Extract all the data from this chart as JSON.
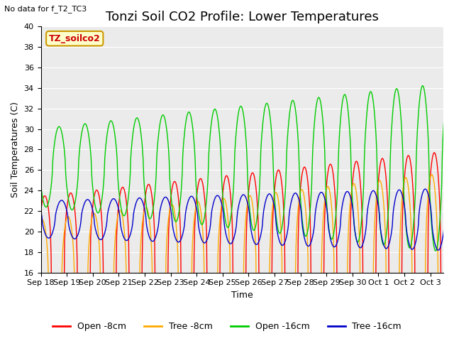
{
  "title": "Tonzi Soil CO2 Profile: Lower Temperatures",
  "xlabel": "Time",
  "ylabel": "Soil Temperatures (C)",
  "ylim": [
    16,
    40
  ],
  "note": "No data for f_T2_TC3",
  "legend_label": "TZ_soilco2",
  "bg_color": "#ffffff",
  "plot_bg_color": "#ebebeb",
  "lines": [
    {
      "label": "Open -8cm",
      "color": "#ff0000"
    },
    {
      "label": "Tree -8cm",
      "color": "#ffaa00"
    },
    {
      "label": "Open -16cm",
      "color": "#00cc00"
    },
    {
      "label": "Tree -16cm",
      "color": "#0000cc"
    }
  ],
  "x_tick_labels": [
    "Sep 18",
    "Sep 19",
    "Sep 20",
    "Sep 21",
    "Sep 22",
    "Sep 23",
    "Sep 24",
    "Sep 25",
    "Sep 26",
    "Sep 27",
    "Sep 28",
    "Sep 29",
    "Sep 30",
    "Oct 1",
    "Oct 2",
    "Oct 3"
  ],
  "title_fontsize": 13,
  "axis_fontsize": 9,
  "tick_fontsize": 8
}
